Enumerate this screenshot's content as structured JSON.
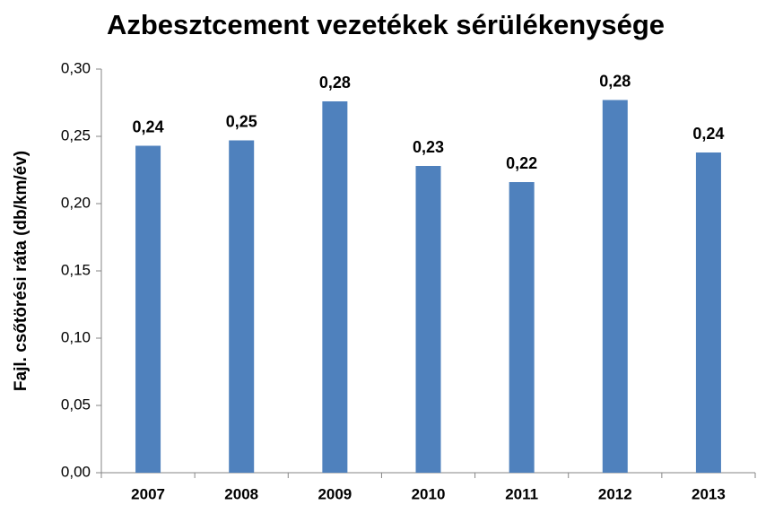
{
  "chart_data": {
    "type": "bar",
    "title": "Azbesztcement vezetékek sérülékenysége",
    "y_label": "Fajl. csőtörési ráta (db/km/év)",
    "categories": [
      "2007",
      "2008",
      "2009",
      "2010",
      "2011",
      "2012",
      "2013"
    ],
    "values": [
      0.243,
      0.247,
      0.276,
      0.228,
      0.216,
      0.277,
      0.238
    ],
    "value_labels": [
      "0,24",
      "0,25",
      "0,28",
      "0,23",
      "0,22",
      "0,28",
      "0,24"
    ],
    "color": "#4f81bd",
    "ylim": [
      0,
      0.3
    ],
    "yticks": [
      {
        "value": 0,
        "label": "0,00"
      },
      {
        "value": 0.05,
        "label": "0,05"
      },
      {
        "value": 0.1,
        "label": "0,10"
      },
      {
        "value": 0.15,
        "label": "0,15"
      },
      {
        "value": 0.2,
        "label": "0,20"
      },
      {
        "value": 0.25,
        "label": "0,25"
      },
      {
        "value": 0.3,
        "label": "0,30"
      }
    ],
    "grid": false
  }
}
